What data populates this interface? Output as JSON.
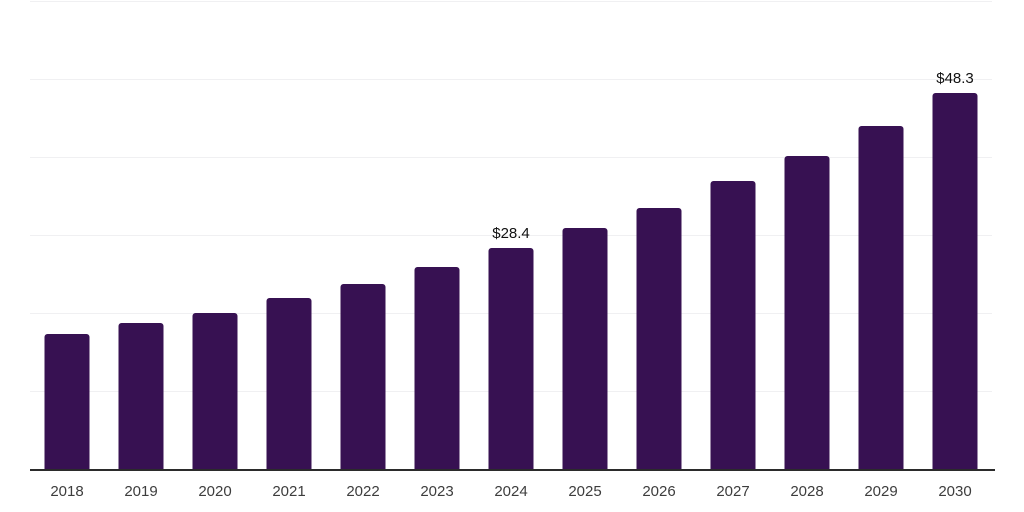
{
  "chart_data": {
    "type": "bar",
    "title": "",
    "xlabel": "",
    "ylabel": "",
    "categories": [
      "2018",
      "2019",
      "2020",
      "2021",
      "2022",
      "2023",
      "2024",
      "2025",
      "2026",
      "2027",
      "2028",
      "2029",
      "2030"
    ],
    "values": [
      17.4,
      18.9,
      20.1,
      22.0,
      23.9,
      26.0,
      28.4,
      31.0,
      33.6,
      37.0,
      40.3,
      44.1,
      48.3
    ],
    "data_labels": [
      "",
      "",
      "",
      "",
      "",
      "",
      "$28.4",
      "",
      "",
      "",
      "",
      "",
      "$48.3"
    ],
    "ylim": [
      0,
      60
    ],
    "gridline_values": [
      10,
      20,
      30,
      40,
      50,
      60
    ],
    "grid": "horizontal-only",
    "legend": "none",
    "y_axis_labels_visible": false,
    "colors": {
      "bar": "#371152",
      "background": "#ffffff",
      "gridline": "#f0f0f2",
      "axis_line": "#2b2b2b",
      "data_label": "#111111",
      "tick_label": "#3d3d3d"
    }
  }
}
